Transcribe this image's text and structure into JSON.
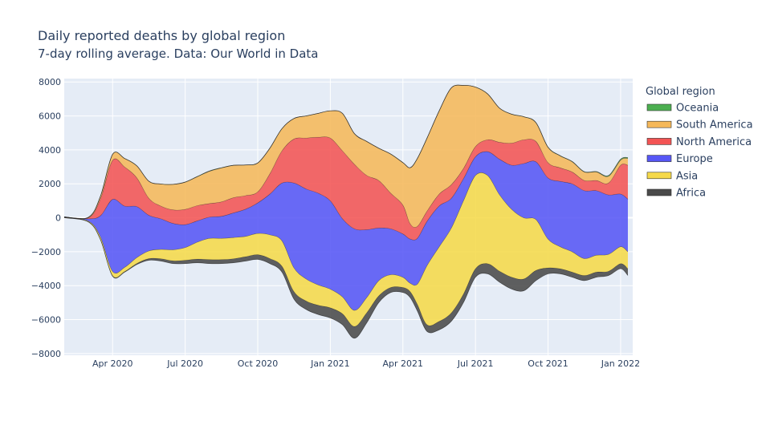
{
  "chart_data": {
    "type": "area",
    "title": "Daily reported deaths by global region",
    "subtitle": "7-day rolling average. Data: Our World in Data",
    "xlabel": "",
    "ylabel": "",
    "ylim": [
      -8100,
      8200
    ],
    "yticks": [
      8000,
      6000,
      4000,
      2000,
      0,
      -2000,
      -4000,
      -6000,
      -8000
    ],
    "ytick_labels": [
      "8000",
      "6000",
      "4000",
      "2000",
      "0",
      "−2000",
      "−4000",
      "−6000",
      "−8000"
    ],
    "xticks": [
      2,
      5,
      8,
      11,
      14,
      17,
      20,
      23
    ],
    "xtick_labels": [
      "Apr 2020",
      "Jul 2020",
      "Oct 2020",
      "Jan 2021",
      "Apr 2021",
      "Jul 2021",
      "Oct 2021",
      "Jan 2022"
    ],
    "xlim": [
      0,
      23.5
    ],
    "x_unit": "months since Feb 2020",
    "legend": {
      "title": "Global region",
      "position": "top-right"
    },
    "layout": "stacked streamgraph with wiggle baseline; bottom layer drawn first",
    "x": [
      0,
      1,
      1.5,
      2,
      2.5,
      3,
      3.5,
      4,
      4.5,
      5,
      5.5,
      6,
      6.5,
      7,
      7.5,
      8,
      8.5,
      9,
      9.5,
      10,
      10.5,
      11,
      11.5,
      12,
      12.5,
      13,
      13.5,
      14,
      14.3,
      14.6,
      15,
      15.5,
      16,
      16.5,
      17,
      17.5,
      18,
      18.5,
      19,
      19.5,
      20,
      20.5,
      21,
      21.5,
      22,
      22.5,
      23,
      23.3
    ],
    "baseline": [
      0,
      -250,
      -1300,
      -3450,
      -3200,
      -2750,
      -2500,
      -2550,
      -2700,
      -2700,
      -2650,
      -2700,
      -2700,
      -2650,
      -2550,
      -2450,
      -2700,
      -3200,
      -4800,
      -5400,
      -5700,
      -5900,
      -6300,
      -7100,
      -6200,
      -5000,
      -4400,
      -4400,
      -4700,
      -5500,
      -6700,
      -6600,
      -6100,
      -5000,
      -3500,
      -3300,
      -3800,
      -4200,
      -4300,
      -3700,
      -3300,
      -3300,
      -3500,
      -3700,
      -3500,
      -3400,
      -3000,
      -3400
    ],
    "series": [
      {
        "name": "Africa",
        "color": "#4a4a4a",
        "values": [
          10,
          20,
          30,
          40,
          40,
          60,
          100,
          140,
          170,
          200,
          220,
          240,
          240,
          240,
          260,
          280,
          300,
          350,
          450,
          500,
          550,
          600,
          650,
          700,
          600,
          400,
          300,
          300,
          350,
          400,
          400,
          500,
          500,
          500,
          500,
          600,
          650,
          700,
          700,
          600,
          350,
          300,
          300,
          300,
          300,
          250,
          300,
          400
        ]
      },
      {
        "name": "Asia",
        "color": "#f5d94a",
        "values": [
          15,
          40,
          150,
          250,
          250,
          350,
          450,
          550,
          650,
          750,
          1000,
          1250,
          1250,
          1250,
          1200,
          1250,
          1400,
          1500,
          1400,
          1300,
          1200,
          1100,
          1000,
          950,
          900,
          900,
          750,
          600,
          500,
          1200,
          3500,
          4400,
          5000,
          5500,
          5500,
          5200,
          4500,
          4000,
          3600,
          3000,
          1700,
          1300,
          1200,
          1000,
          1000,
          1000,
          1000,
          1000
        ]
      },
      {
        "name": "Europe",
        "color": "#5757f5",
        "values": [
          15,
          130,
          1250,
          4250,
          3600,
          3000,
          2100,
          1800,
          1550,
          1350,
          1250,
          1250,
          1300,
          1450,
          1600,
          1800,
          2400,
          3400,
          5000,
          5300,
          5400,
          5200,
          4600,
          4800,
          4000,
          3100,
          2700,
          2550,
          2600,
          2700,
          2600,
          2400,
          1750,
          1300,
          1100,
          1400,
          2100,
          2600,
          3200,
          3400,
          3600,
          3850,
          4000,
          4000,
          3800,
          3500,
          3100,
          3100
        ]
      },
      {
        "name": "North America",
        "color": "#f35454",
        "values": [
          10,
          60,
          1000,
          2300,
          2300,
          1700,
          1000,
          750,
          800,
          900,
          900,
          800,
          850,
          900,
          800,
          650,
          1200,
          1900,
          2600,
          3000,
          3300,
          3700,
          4000,
          3800,
          3200,
          2800,
          2100,
          1700,
          900,
          700,
          600,
          700,
          800,
          600,
          600,
          700,
          1000,
          1300,
          1400,
          1200,
          900,
          800,
          700,
          600,
          600,
          700,
          1700,
          2000
        ]
      },
      {
        "name": "South America",
        "color": "#f5b85a",
        "values": [
          0,
          30,
          150,
          350,
          500,
          700,
          1000,
          1300,
          1500,
          1600,
          1700,
          1900,
          2000,
          1900,
          1800,
          1700,
          1500,
          1300,
          1200,
          1300,
          1400,
          1600,
          2200,
          1800,
          2000,
          1900,
          2300,
          2500,
          3300,
          4000,
          4300,
          4900,
          5700,
          4900,
          3500,
          2700,
          2000,
          1700,
          1350,
          1100,
          900,
          700,
          600,
          500,
          500,
          400,
          300,
          400
        ]
      },
      {
        "name": "Oceania",
        "color": "#4caf50",
        "values": [
          0,
          1,
          2,
          3,
          2,
          1,
          1,
          1,
          2,
          5,
          10,
          15,
          8,
          3,
          2,
          1,
          1,
          1,
          1,
          1,
          1,
          1,
          1,
          1,
          1,
          1,
          1,
          1,
          1,
          1,
          1,
          1,
          1,
          1,
          1,
          1,
          2,
          3,
          5,
          8,
          10,
          12,
          12,
          15,
          20,
          40,
          50,
          50
        ]
      }
    ],
    "legend_order": [
      "Oceania",
      "South America",
      "North America",
      "Europe",
      "Asia",
      "Africa"
    ]
  }
}
